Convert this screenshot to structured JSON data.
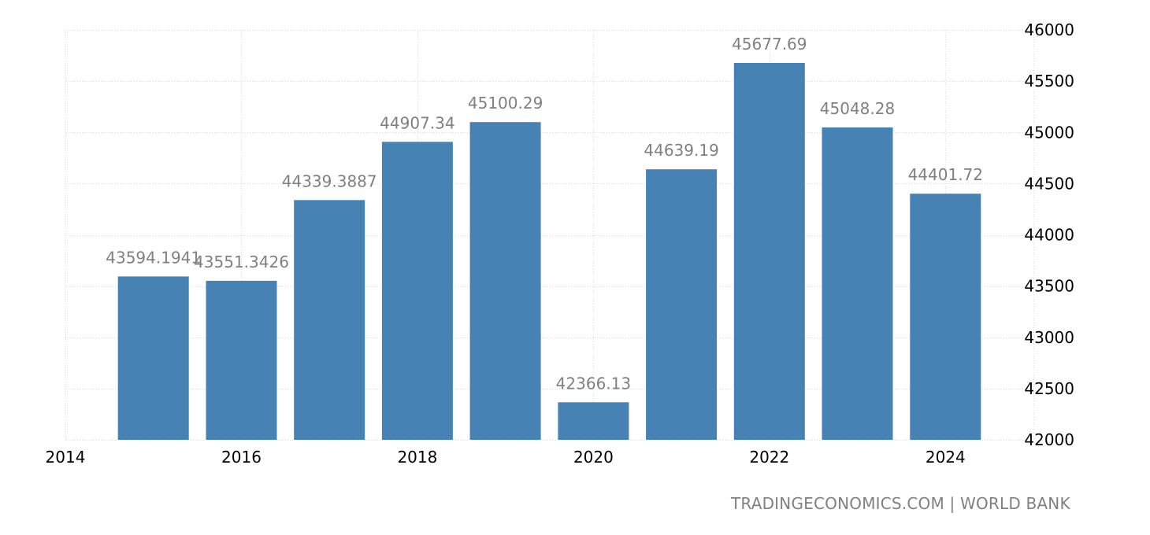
{
  "chart_data": {
    "type": "bar",
    "x": [
      2015,
      2016,
      2017,
      2018,
      2019,
      2020,
      2021,
      2022,
      2023,
      2024
    ],
    "values": [
      43594.1941,
      43551.3426,
      44339.3887,
      44907.34,
      45100.29,
      42366.13,
      44639.19,
      45677.69,
      45048.28,
      44401.72
    ],
    "value_labels": [
      "43594.1941",
      "43551.3426",
      "44339.3887",
      "44907.34",
      "45100.29",
      "42366.13",
      "44639.19",
      "45677.69",
      "45048.28",
      "44401.72"
    ],
    "ylim": [
      42000,
      46000
    ],
    "y_ticks": [
      "42000",
      "42500",
      "43000",
      "43500",
      "44000",
      "44500",
      "45000",
      "45500",
      "46000"
    ],
    "xlim": [
      2014,
      2025
    ],
    "x_ticks": [
      "2014",
      "2016",
      "2018",
      "2020",
      "2022",
      "2024"
    ],
    "y_axis_position": "right",
    "grid": true,
    "bar_color": "#4682b4"
  },
  "source": "TRADINGECONOMICS.COM | WORLD BANK"
}
